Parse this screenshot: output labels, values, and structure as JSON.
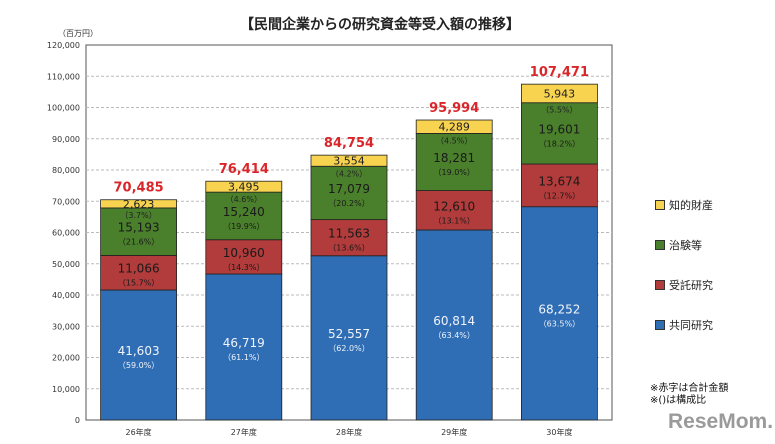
{
  "chart_data": {
    "type": "bar",
    "stacked": true,
    "title": "【民間企業からの研究資金等受入額の推移】",
    "ylabel": "（百万円）",
    "ylim": [
      0,
      120000
    ],
    "ytick_step": 10000,
    "grid": true,
    "categories": [
      "26年度",
      "27年度",
      "28年度",
      "29年度",
      "30年度"
    ],
    "series": [
      {
        "name": "共同研究",
        "color": "#2f6db5",
        "values": [
          41603,
          46719,
          52557,
          60814,
          68252
        ],
        "pct": [
          "59.0%",
          "61.1%",
          "62.0%",
          "63.4%",
          "63.5%"
        ]
      },
      {
        "name": "受託研究",
        "color": "#b23b3b",
        "values": [
          11066,
          10960,
          11563,
          12610,
          13674
        ],
        "pct": [
          "15.7%",
          "14.3%",
          "13.6%",
          "13.1%",
          "12.7%"
        ]
      },
      {
        "name": "治験等",
        "color": "#4a7f2c",
        "values": [
          15193,
          15240,
          17079,
          18281,
          19601
        ],
        "pct": [
          "21.6%",
          "19.9%",
          "20.2%",
          "19.0%",
          "18.2%"
        ]
      },
      {
        "name": "知的財産",
        "color": "#f7d34f",
        "values": [
          2623,
          3495,
          3554,
          4289,
          5943
        ],
        "pct": [
          "3.7%",
          "4.6%",
          "4.2%",
          "4.5%",
          "5.5%"
        ]
      }
    ],
    "totals": [
      "70,485",
      "76,414",
      "84,754",
      "95,994",
      "107,471"
    ],
    "total_color": "#d9262b",
    "legend_position": "right"
  },
  "notes": [
    "※赤字は合計金額",
    "※()は構成比"
  ],
  "watermark": "ReseMom."
}
